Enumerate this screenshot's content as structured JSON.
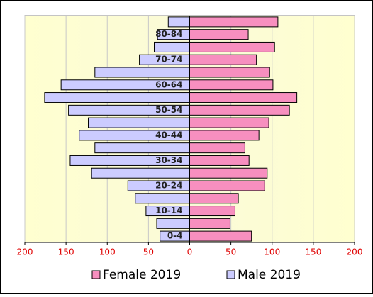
{
  "chart_data": {
    "type": "pyramid",
    "categories": [
      "0-4",
      null,
      "10-14",
      null,
      "20-24",
      null,
      "30-34",
      null,
      "40-44",
      null,
      "50-54",
      null,
      "60-64",
      null,
      "70-74",
      null,
      "80-84",
      null
    ],
    "series": [
      {
        "name": "Female 2019",
        "color": "#f78fbf",
        "values": [
          75,
          49,
          55,
          59,
          91,
          94,
          72,
          67,
          84,
          96,
          121,
          130,
          101,
          97,
          81,
          103,
          71,
          107
        ]
      },
      {
        "name": "Male 2019",
        "color": "#ccccff",
        "values": [
          -36,
          -40,
          -53,
          -66,
          -75,
          -119,
          -145,
          -115,
          -134,
          -123,
          -147,
          -176,
          -156,
          -115,
          -61,
          -43,
          -39,
          -26
        ]
      }
    ],
    "xlim": [
      -200,
      200
    ],
    "xticks": [
      {
        "value": -200,
        "label": "200"
      },
      {
        "value": -150,
        "label": "150"
      },
      {
        "value": -100,
        "label": "100"
      },
      {
        "value": -50,
        "label": "50"
      },
      0,
      50,
      100,
      150,
      200
    ],
    "grid": true
  }
}
